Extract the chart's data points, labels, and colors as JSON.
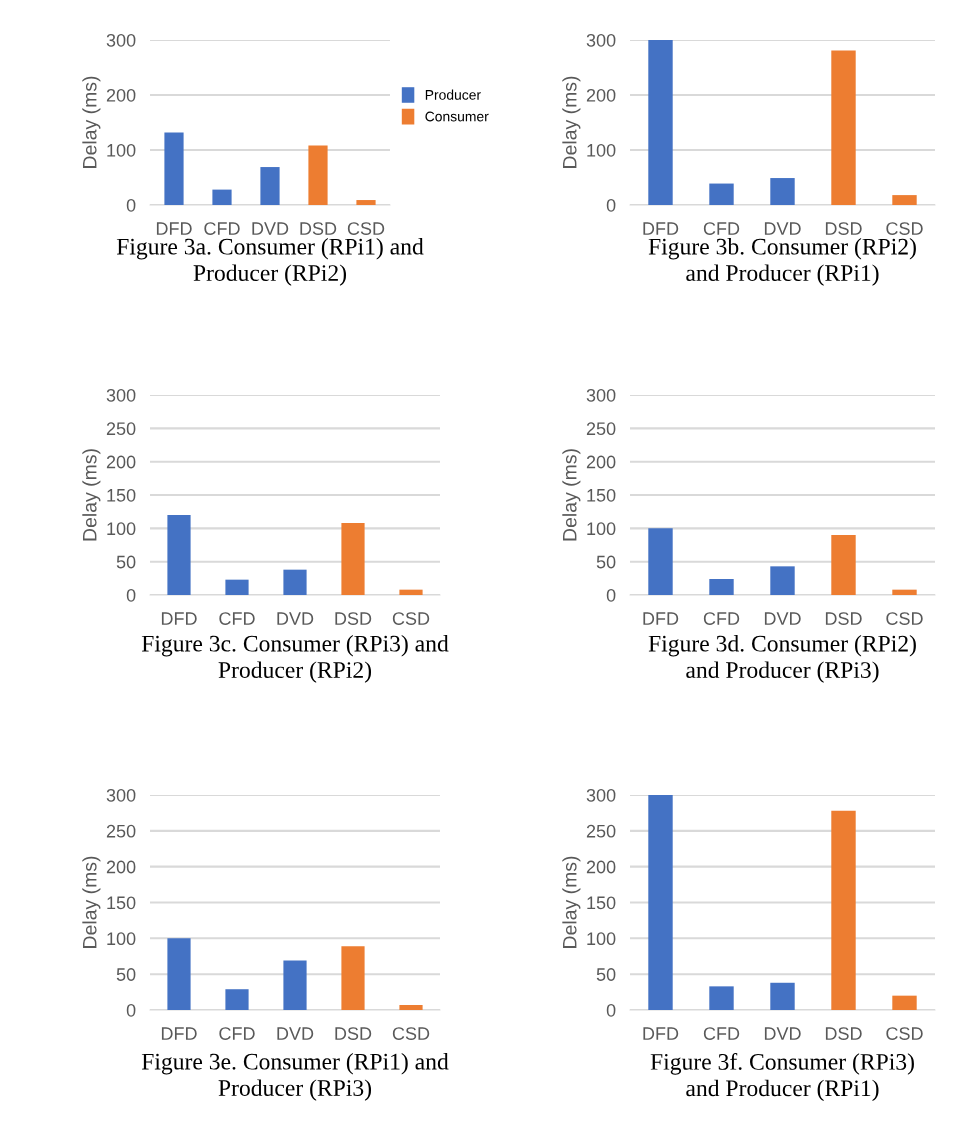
{
  "chart_data": [
    {
      "type": "bar",
      "title": "Figure 3a. Consumer (RPi1) and\nProducer (RPi2)",
      "ylabel": "Delay (ms)",
      "categories": [
        "DFD",
        "CFD",
        "DVD",
        "DSD",
        "CSD"
      ],
      "series": [
        {
          "name": "Producer",
          "color": "#4472c4",
          "values": [
            132,
            28,
            69,
            null,
            null
          ]
        },
        {
          "name": "Consumer",
          "color": "#ed7d31",
          "values": [
            null,
            null,
            null,
            108,
            9
          ]
        }
      ],
      "ylim": [
        0,
        300
      ],
      "yticks": [
        0,
        100,
        200,
        300
      ],
      "grid": "y",
      "legend": "right"
    },
    {
      "type": "bar",
      "title": "Figure 3b. Consumer (RPi2)\nand Producer (RPi1)",
      "ylabel": "Delay (ms)",
      "categories": [
        "DFD",
        "CFD",
        "DVD",
        "DSD",
        "CSD"
      ],
      "values": [
        300,
        39,
        49,
        281,
        18
      ],
      "colors": [
        "#4472c4",
        "#4472c4",
        "#4472c4",
        "#ed7d31",
        "#ed7d31"
      ],
      "ylim": [
        0,
        300
      ],
      "yticks": [
        0,
        100,
        200,
        300
      ],
      "grid": "y"
    },
    {
      "type": "bar",
      "title": "Figure 3c. Consumer (RPi3) and\nProducer (RPi2)",
      "ylabel": "Delay (ms)",
      "categories": [
        "DFD",
        "CFD",
        "DVD",
        "DSD",
        "CSD"
      ],
      "values": [
        120,
        23,
        38,
        108,
        8
      ],
      "colors": [
        "#4472c4",
        "#4472c4",
        "#4472c4",
        "#ed7d31",
        "#ed7d31"
      ],
      "ylim": [
        0,
        300
      ],
      "yticks": [
        0,
        50,
        100,
        150,
        200,
        250,
        300
      ],
      "grid": "y"
    },
    {
      "type": "bar",
      "title": "Figure 3d. Consumer (RPi2)\nand Producer (RPi3)",
      "ylabel": "Delay (ms)",
      "categories": [
        "DFD",
        "CFD",
        "DVD",
        "DSD",
        "CSD"
      ],
      "values": [
        100,
        24,
        43,
        90,
        8
      ],
      "colors": [
        "#4472c4",
        "#4472c4",
        "#4472c4",
        "#ed7d31",
        "#ed7d31"
      ],
      "ylim": [
        0,
        300
      ],
      "yticks": [
        0,
        50,
        100,
        150,
        200,
        250,
        300
      ],
      "grid": "y"
    },
    {
      "type": "bar",
      "title": "Figure 3e. Consumer (RPi1) and\nProducer (RPi3)",
      "ylabel": "Delay (ms)",
      "categories": [
        "DFD",
        "CFD",
        "DVD",
        "DSD",
        "CSD"
      ],
      "values": [
        100,
        29,
        69,
        89,
        7
      ],
      "colors": [
        "#4472c4",
        "#4472c4",
        "#4472c4",
        "#ed7d31",
        "#ed7d31"
      ],
      "ylim": [
        0,
        300
      ],
      "yticks": [
        0,
        50,
        100,
        150,
        200,
        250,
        300
      ],
      "grid": "y"
    },
    {
      "type": "bar",
      "title": "Figure 3f. Consumer (RPi3)\nand Producer (RPi1)",
      "ylabel": "Delay (ms)",
      "categories": [
        "DFD",
        "CFD",
        "DVD",
        "DSD",
        "CSD"
      ],
      "values": [
        300,
        33,
        38,
        278,
        20
      ],
      "colors": [
        "#4472c4",
        "#4472c4",
        "#4472c4",
        "#ed7d31",
        "#ed7d31"
      ],
      "ylim": [
        0,
        300
      ],
      "yticks": [
        0,
        50,
        100,
        150,
        200,
        250,
        300
      ],
      "grid": "y"
    }
  ]
}
